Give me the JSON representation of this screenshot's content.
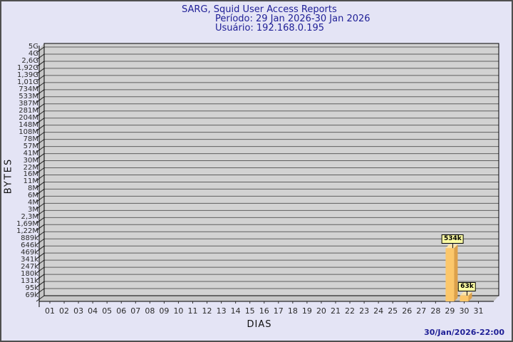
{
  "window": {
    "background": "#e4e4f5",
    "border_color": "#4f4f4f"
  },
  "title": {
    "line1": "SARG, Squid User Access Reports",
    "line2": "Período: 29 Jan 2026-30 Jan 2026",
    "line3": "Usuário: 192.168.0.195",
    "color": "#1e1e96"
  },
  "footer": {
    "timestamp": "30/Jan/2026-22:00"
  },
  "chart_data": {
    "type": "bar",
    "title": "SARG, Squid User Access Reports",
    "period": "29 Jan 2026-30 Jan 2026",
    "user": "192.168.0.195",
    "xlabel": "DIAS",
    "ylabel": "BYTES",
    "y_scale": "logarithmic",
    "y_min_label": "69k",
    "y_max_label": "5G",
    "y_tick_labels_top_to_bottom": [
      "5G",
      "4G",
      "2,6G",
      "1,92G",
      "1,39G",
      "1,01G",
      "734M",
      "533M",
      "387M",
      "281M",
      "204M",
      "148M",
      "108M",
      "78M",
      "57M",
      "41M",
      "30M",
      "22M",
      "16M",
      "11M",
      "8M",
      "6M",
      "4M",
      "3M",
      "2,3M",
      "1,69M",
      "1,22M",
      "889k",
      "646k",
      "469k",
      "341k",
      "247k",
      "180k",
      "131k",
      "95k",
      "69k"
    ],
    "x_tick_labels": [
      "01",
      "02",
      "03",
      "04",
      "05",
      "06",
      "07",
      "08",
      "09",
      "10",
      "11",
      "12",
      "13",
      "14",
      "15",
      "16",
      "17",
      "18",
      "19",
      "20",
      "21",
      "22",
      "23",
      "24",
      "25",
      "26",
      "27",
      "28",
      "29",
      "30",
      "31"
    ],
    "bars": [
      {
        "day": "29",
        "label": "534k",
        "bytes": 534000
      },
      {
        "day": "30",
        "label": "63k",
        "bytes": 63000
      }
    ],
    "grid": true,
    "legend": "none",
    "colors": {
      "bar_front": "#fcc76a",
      "bar_side": "#dda14a",
      "bar_top": "#fde3a8",
      "value_box_bg": "#ffffa4",
      "wall": "#d2d2d2",
      "wall_side": "#c6c6c6",
      "gridline": "#5f5f5f",
      "axis": "#000000"
    }
  }
}
